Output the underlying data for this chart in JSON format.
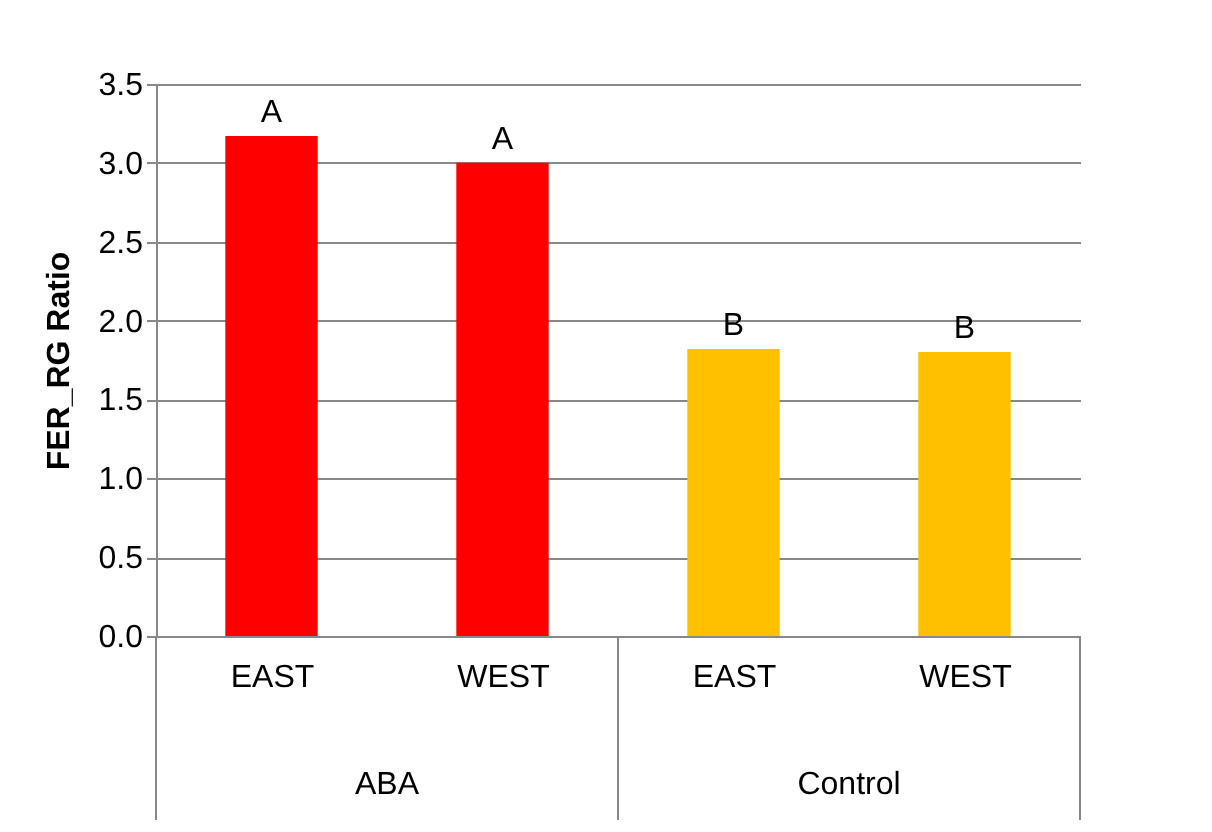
{
  "chart_data": {
    "type": "bar",
    "ylabel": "FER_RG Ratio",
    "categories": [
      "EAST",
      "WEST",
      "EAST",
      "WEST"
    ],
    "values": [
      3.17,
      3.0,
      1.82,
      1.8
    ],
    "colors": [
      "#ff0000",
      "#ff0000",
      "#ffc000",
      "#ffc000"
    ],
    "ylim": [
      0,
      3.5
    ],
    "yticks": [
      {
        "value": 0,
        "label": "0.0"
      },
      {
        "value": 0.5,
        "label": "0.5"
      },
      {
        "value": 1,
        "label": "1.0"
      },
      {
        "value": 1.5,
        "label": "1.5"
      },
      {
        "value": 2,
        "label": "2.0"
      },
      {
        "value": 2.5,
        "label": "2.5"
      },
      {
        "value": 3,
        "label": "3.0"
      },
      {
        "value": 3.5,
        "label": "3.5"
      }
    ],
    "grid": "y",
    "annotations": [
      "A",
      "A",
      "B",
      "B",
      "ABA",
      "Control"
    ]
  }
}
